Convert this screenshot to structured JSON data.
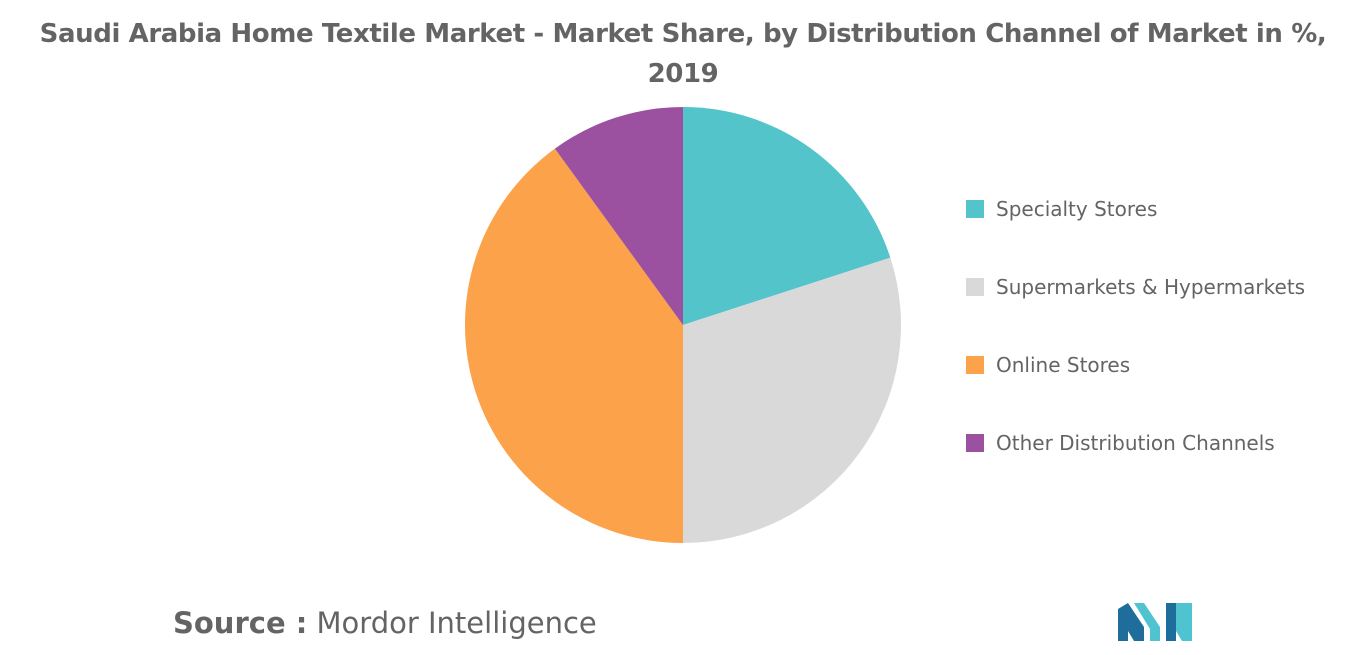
{
  "chart_data": {
    "type": "pie",
    "title": "Saudi Arabia Home Textile Market - Market Share, by Distribution Channel of Market in %, 2019",
    "title_lines": [
      "Saudi Arabia Home Textile Market - Market Share, by Distribution Channel of Market in %,",
      "2019"
    ],
    "categories": [
      "Specialty Stores",
      "Supermarkets & Hypermarkets",
      "Online Stores",
      "Other Distribution Channels"
    ],
    "values": [
      20,
      30,
      40,
      10
    ],
    "colors": [
      "#53c4ca",
      "#d9d9d9",
      "#fba24a",
      "#9c51a0"
    ],
    "legend_position": "right",
    "start_angle": "12 o'clock",
    "direction": "clockwise"
  },
  "source": {
    "prefix": "Source :",
    "name": "Mordor Intelligence"
  },
  "logo": {
    "icon": "mordor-intelligence-logo-icon",
    "colors": [
      "#1e6d9a",
      "#4fc3d0"
    ]
  }
}
